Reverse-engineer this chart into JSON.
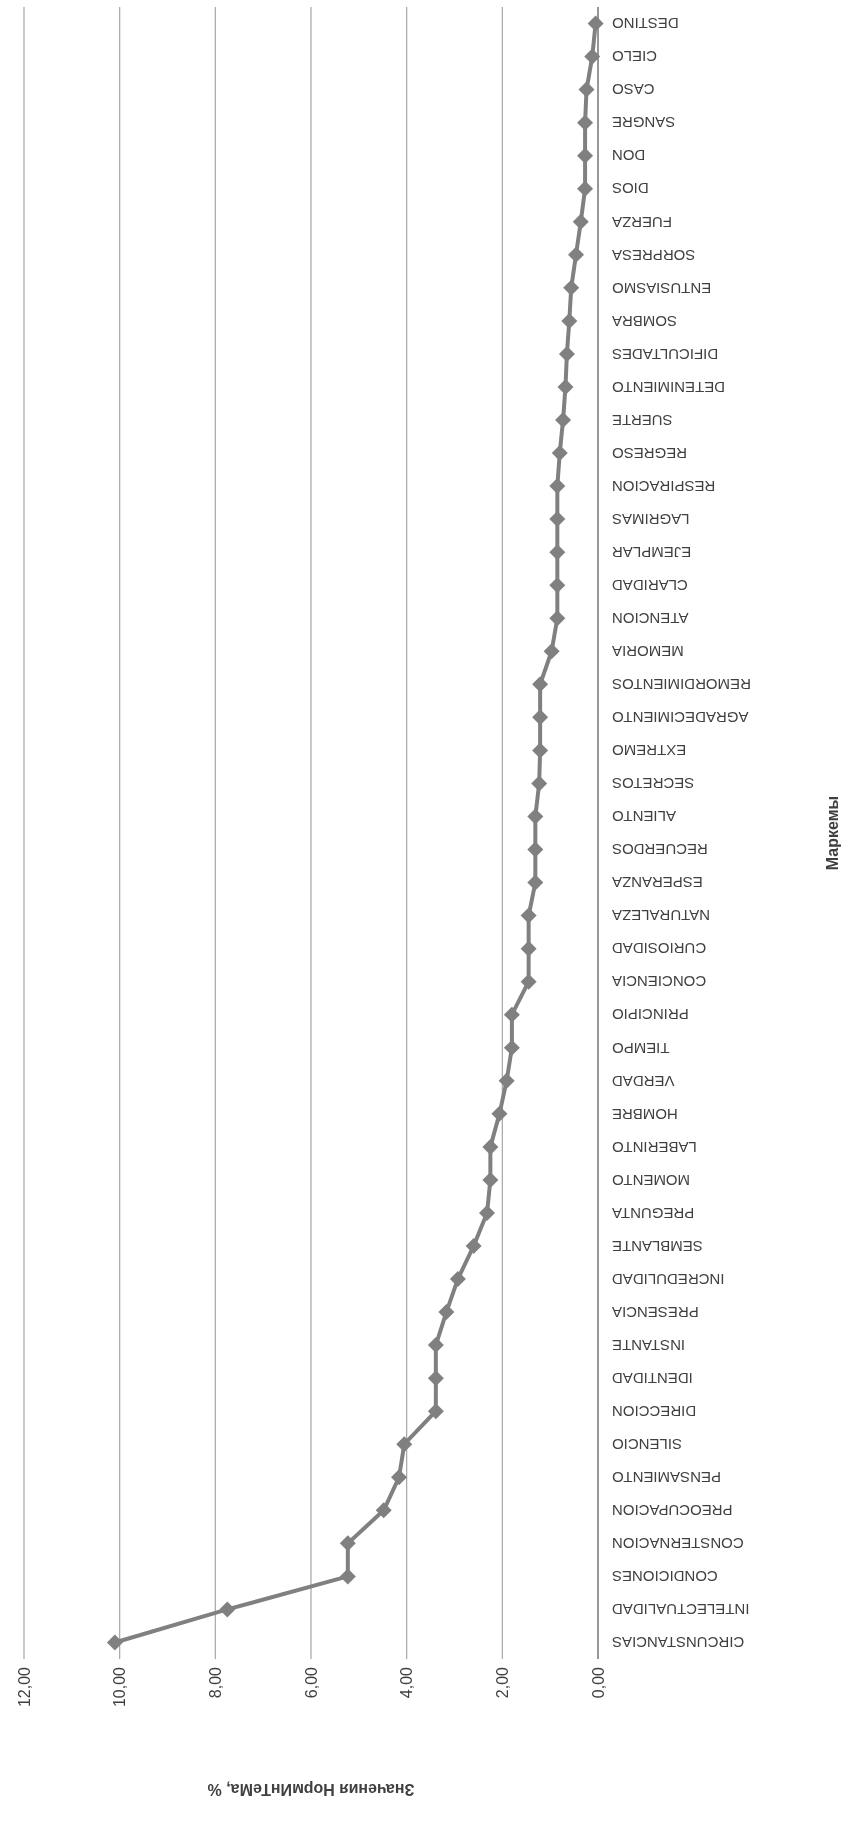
{
  "chart_data": {
    "type": "line",
    "orientation": "horizontal",
    "xlabel": "Значения НормИнТеМа, %",
    "ylabel": "Маркемы",
    "categories": [
      "DESTINO",
      "CIELO",
      "CASO",
      "SANGRE",
      "DON",
      "DIOS",
      "FUERZA",
      "SORPRESA",
      "ENTUSIASMO",
      "SOMBRA",
      "DIFICULTADES",
      "DETENIMIENTO",
      "SUERTE",
      "REGRESO",
      "RESPIRACION",
      "LAGRIMAS",
      "EJEMPLAR",
      "CLARIDAD",
      "ATENCION",
      "MEMORIA",
      "REMORDIMIENTOS",
      "AGRADECIMIENTO",
      "EXTREMO",
      "SECRETOS",
      "ALIENTO",
      "RECUERDOS",
      "ESPERANZA",
      "NATURALEZA",
      "CURIOSIDAD",
      "CONCIENCIA",
      "PRINCIPIO",
      "TIEMPO",
      "VERDAD",
      "HOMBRE",
      "LABERINTO",
      "MOMENTO",
      "PREGUNTA",
      "SEMBLANTE",
      "INCREDULIDAD",
      "PRESENCIA",
      "INSTANTE",
      "IDENTIDAD",
      "DIRECCION",
      "SILENCIO",
      "PENSAMIENTO",
      "PREOCUPACION",
      "CONSTERNACION",
      "CONDICIONES",
      "INTELECTUALIDAD",
      "CIRCUNSTANCIAS"
    ],
    "series": [
      {
        "color": "#808080",
        "values": [
          0.05,
          0.12,
          0.24,
          0.27,
          0.27,
          0.27,
          0.36,
          0.46,
          0.56,
          0.6,
          0.65,
          0.68,
          0.73,
          0.8,
          0.85,
          0.85,
          0.85,
          0.85,
          0.85,
          0.97,
          1.21,
          1.21,
          1.21,
          1.23,
          1.31,
          1.31,
          1.31,
          1.45,
          1.45,
          1.45,
          1.8,
          1.8,
          1.91,
          2.06,
          2.25,
          2.25,
          2.32,
          2.6,
          2.93,
          3.17,
          3.39,
          3.39,
          3.39,
          4.05,
          4.16,
          4.48,
          5.23,
          5.23,
          7.75,
          10.1
        ]
      }
    ],
    "xlim": [
      12,
      0
    ],
    "xticks": [
      {
        "value": 0,
        "label": "0,00"
      },
      {
        "value": 2,
        "label": "2,00"
      },
      {
        "value": 4,
        "label": "4,00"
      },
      {
        "value": 6,
        "label": "6,00"
      },
      {
        "value": 8,
        "label": "8,00"
      },
      {
        "value": 10,
        "label": "10,00"
      },
      {
        "value": 12,
        "label": "12,00"
      }
    ],
    "grid": "x",
    "marker": "diamond",
    "line_style": "solid"
  }
}
